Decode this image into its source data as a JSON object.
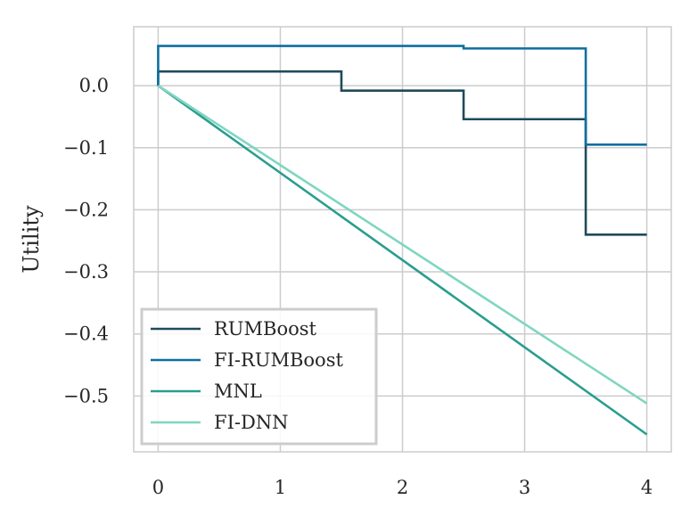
{
  "chart_data": {
    "type": "line",
    "title": "",
    "xlabel": "",
    "ylabel": "Utility",
    "xlim": [
      -0.2,
      4.2
    ],
    "ylim": [
      -0.59,
      0.095
    ],
    "xticks": [
      0,
      1,
      2,
      3,
      4
    ],
    "xtick_labels": [
      "0",
      "1",
      "2",
      "3",
      "4"
    ],
    "yticks": [
      0.0,
      -0.1,
      -0.2,
      -0.3,
      -0.4,
      -0.5
    ],
    "ytick_labels": [
      "0.0",
      "−0.1",
      "−0.2",
      "−0.3",
      "−0.4",
      "−0.5"
    ],
    "grid": true,
    "legend_position": "lower-left",
    "series": [
      {
        "name": "RUMBoost",
        "color": "#1f4a5c",
        "x": [
          0,
          0,
          1.5,
          1.5,
          2.5,
          2.5,
          3.5,
          3.5,
          4
        ],
        "y": [
          0.0,
          0.023,
          0.023,
          -0.008,
          -0.008,
          -0.054,
          -0.054,
          -0.24,
          -0.24
        ]
      },
      {
        "name": "FI-RUMBoost",
        "color": "#0e6fa0",
        "x": [
          0,
          0,
          2.5,
          2.5,
          3.5,
          3.5,
          4
        ],
        "y": [
          0.0,
          0.064,
          0.064,
          0.06,
          0.06,
          -0.095,
          -0.095
        ]
      },
      {
        "name": "MNL",
        "color": "#2a9d8f",
        "x": [
          0,
          4
        ],
        "y": [
          0.0,
          -0.562
        ]
      },
      {
        "name": "FI-DNN",
        "color": "#7fd6c0",
        "x": [
          0,
          4
        ],
        "y": [
          0.0,
          -0.512
        ]
      }
    ]
  }
}
